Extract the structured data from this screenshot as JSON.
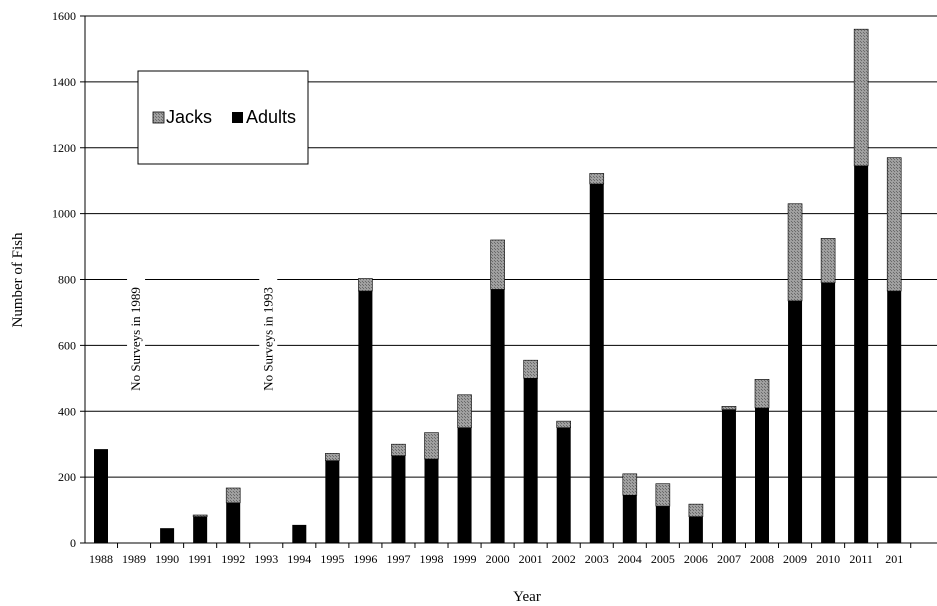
{
  "chart_data": {
    "type": "bar",
    "stacked": true,
    "categories": [
      "1988",
      "1989",
      "1990",
      "1991",
      "1992",
      "1993",
      "1994",
      "1995",
      "1996",
      "1997",
      "1998",
      "1999",
      "2000",
      "2001",
      "2002",
      "2003",
      "2004",
      "2005",
      "2006",
      "2007",
      "2008",
      "2009",
      "2010",
      "2011",
      "201"
    ],
    "series": [
      {
        "name": "Adults",
        "color": "#000000",
        "values": [
          285,
          null,
          45,
          80,
          122,
          null,
          55,
          250,
          765,
          265,
          255,
          350,
          770,
          500,
          350,
          1090,
          145,
          112,
          80,
          405,
          410,
          735,
          790,
          1145,
          765
        ]
      },
      {
        "name": "Jacks",
        "color": "#999999",
        "values": [
          0,
          null,
          0,
          5,
          45,
          null,
          0,
          22,
          38,
          35,
          80,
          100,
          150,
          55,
          20,
          32,
          65,
          68,
          38,
          10,
          87,
          295,
          135,
          415,
          405
        ]
      }
    ],
    "xlabel": "Year",
    "ylabel": "Number of Fish",
    "ylim": [
      0,
      1600
    ],
    "yticks": [
      0,
      200,
      400,
      600,
      800,
      1000,
      1200,
      1400,
      1600
    ],
    "grid": true,
    "legend": {
      "placement": "top-left",
      "entries": [
        "Jacks",
        "Adults"
      ]
    },
    "annotations": [
      {
        "text": "No Surveys in 1989",
        "category": "1989"
      },
      {
        "text": "No Surveys in 1993",
        "category": "1993"
      }
    ]
  }
}
